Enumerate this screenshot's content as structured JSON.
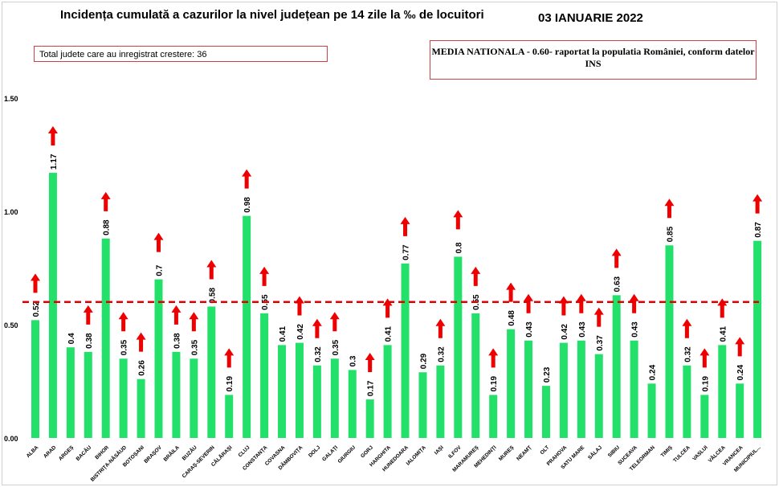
{
  "chart_data": {
    "type": "bar",
    "title": "Incidența cumulată a cazurilor la nivel județean pe 14 zile la ‰ de locuitori",
    "date": "03 IANUARIE 2022",
    "annotation_total": "Total judete care au inregistrat crestere: 36",
    "annotation_media": "MEDIA NATIONALA - 0.60-  raportat la populatia  României, conform datelor INS",
    "reference_line": {
      "value": 0.6,
      "style": "dashed",
      "color": "#e00000"
    },
    "ylim": [
      0,
      1.5
    ],
    "yticks": [
      "0.00",
      "0.50",
      "1.00",
      "1.50"
    ],
    "grid": false,
    "bar_color": "#22e06a",
    "arrow_color": "#ee0000",
    "categories": [
      "ALBA",
      "ARAD",
      "ARGEȘ",
      "BACĂU",
      "BIHOR",
      "BISTRIȚA-NĂSĂUD",
      "BOTOȘANI",
      "BRAȘOV",
      "BRĂILA",
      "BUZĂU",
      "CARAȘ-SEVERIN",
      "CĂLĂRAȘI",
      "CLUJ",
      "CONSTANȚA",
      "COVASNA",
      "DÂMBOVIȚA",
      "DOLJ",
      "GALAȚI",
      "GIURGIU",
      "GORJ",
      "HARGHITA",
      "HUNEDOARA",
      "IALOMIȚA",
      "IAȘI",
      "ILFOV",
      "MARAMUREȘ",
      "MEHEDINȚI",
      "MUREȘ",
      "NEAMȚ",
      "OLT",
      "PRAHOVA",
      "SATU MARE",
      "SĂLAJ",
      "SIBIU",
      "SUCEAVA",
      "TELEORMAN",
      "TIMIȘ",
      "TULCEA",
      "VASLUI",
      "VÂLCEA",
      "VRANCEA",
      "MUNICIPIUL..."
    ],
    "values": [
      0.52,
      1.17,
      0.4,
      0.38,
      0.88,
      0.35,
      0.26,
      0.7,
      0.38,
      0.35,
      0.58,
      0.19,
      0.98,
      0.55,
      0.41,
      0.42,
      0.32,
      0.35,
      0.3,
      0.17,
      0.41,
      0.77,
      0.29,
      0.32,
      0.8,
      0.55,
      0.19,
      0.48,
      0.43,
      0.23,
      0.42,
      0.43,
      0.37,
      0.63,
      0.43,
      0.24,
      0.85,
      0.32,
      0.19,
      0.41,
      0.24,
      0.87
    ],
    "increase": [
      true,
      true,
      false,
      true,
      true,
      true,
      true,
      true,
      true,
      true,
      true,
      true,
      true,
      true,
      false,
      true,
      true,
      true,
      false,
      true,
      true,
      true,
      false,
      true,
      true,
      true,
      true,
      true,
      true,
      false,
      true,
      true,
      true,
      true,
      true,
      false,
      true,
      true,
      true,
      true,
      true,
      true
    ]
  }
}
